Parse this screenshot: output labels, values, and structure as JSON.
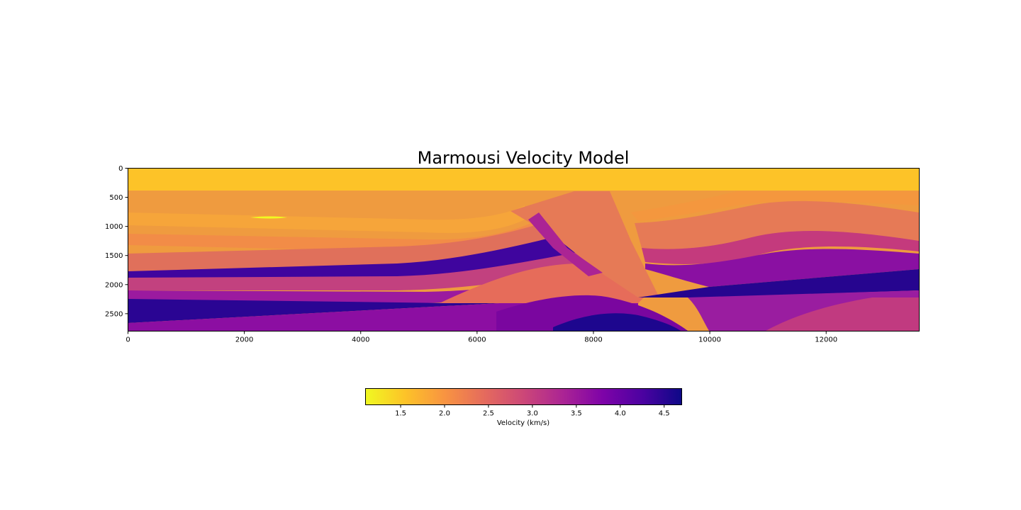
{
  "chart_data": {
    "type": "heatmap",
    "title": "Marmousi Velocity Model",
    "xlabel": "",
    "ylabel": "",
    "xlim": [
      0,
      13600
    ],
    "ylim": [
      2800,
      0
    ],
    "x_ticks": [
      0,
      2000,
      4000,
      6000,
      8000,
      10000,
      12000
    ],
    "y_ticks": [
      0,
      500,
      1000,
      1500,
      2000,
      2500
    ],
    "colormap": "plasma_r",
    "colorbar": {
      "label": "Velocity (km/s)",
      "range": [
        1.1,
        4.7
      ],
      "ticks": [
        1.5,
        2.0,
        2.5,
        3.0,
        3.5,
        4.0,
        4.5
      ],
      "tick_labels": [
        "1.5",
        "2.0",
        "2.5",
        "3.0",
        "3.5",
        "4.0",
        "4.5"
      ],
      "orientation": "horizontal"
    }
  }
}
